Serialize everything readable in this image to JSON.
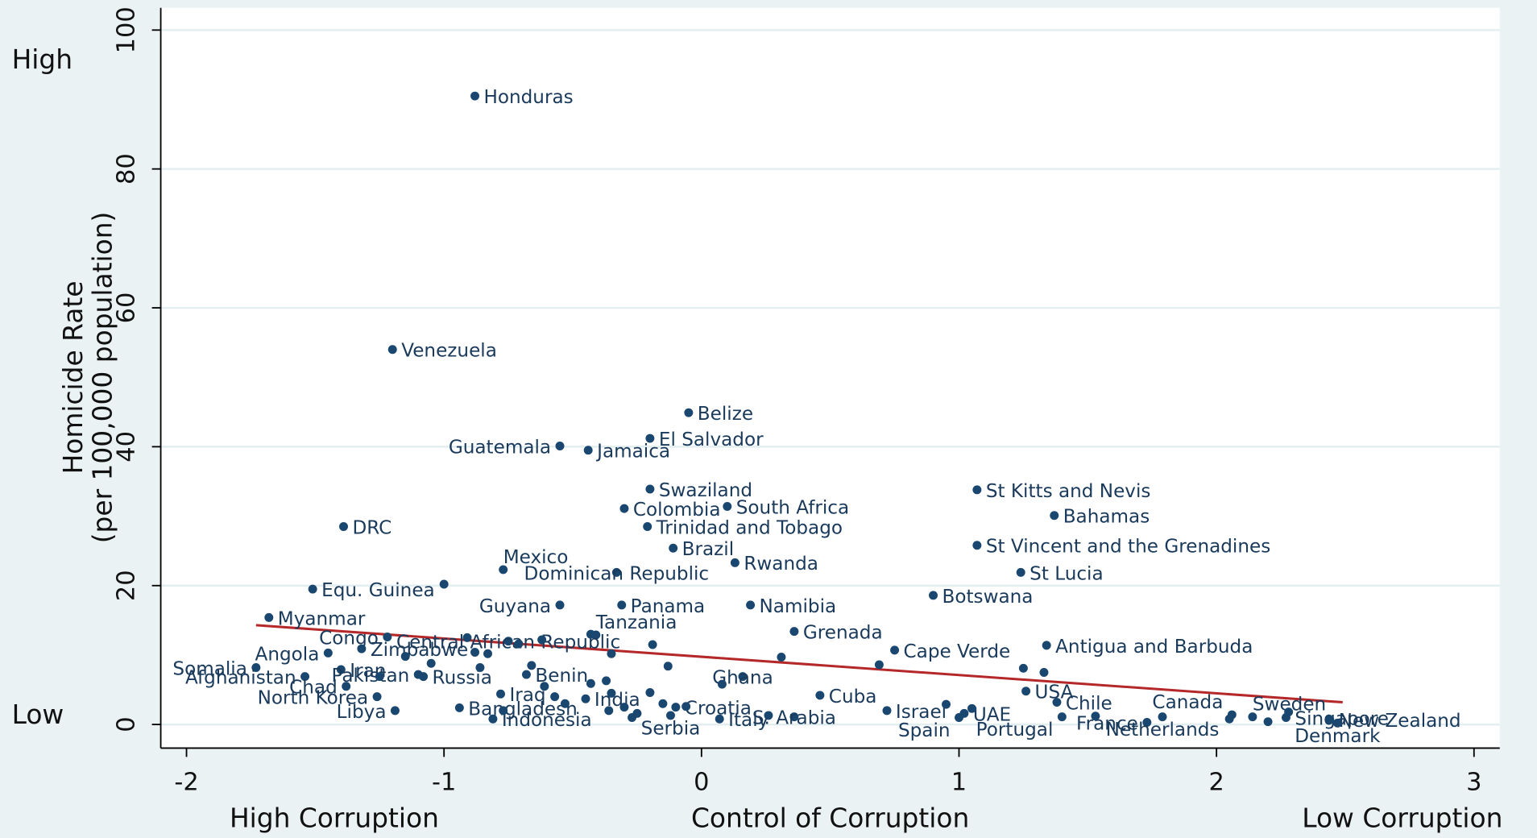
{
  "chart_data": {
    "type": "scatter",
    "y_label": [
      "Homicide Rate",
      "(per 100,000 population)"
    ],
    "x_label": "Control of Corruption",
    "annotations": {
      "y_high": "High",
      "y_low": "Low",
      "x_high": "High Corruption",
      "x_low": "Low Corruption"
    },
    "xlim": [
      -2.1,
      3.1
    ],
    "ylim": [
      -3.4,
      103.2
    ],
    "xticks": [
      -2,
      -1,
      0,
      1,
      2,
      3
    ],
    "yticks": [
      0,
      20,
      40,
      60,
      80,
      100
    ],
    "grid": true,
    "color": "#1a476f",
    "labels": [
      "Honduras",
      "Venezuela",
      "Belize",
      "El Salvador",
      "Guatemala",
      "Jamaica",
      "Swaziland",
      "Colombia",
      "South Africa",
      "Trinidad and Tobago",
      "DRC",
      "Brazil",
      "Rwanda",
      "Mexico",
      "Dominican Republic",
      "Equ. Guinea",
      "Guyana",
      "Panama",
      "Namibia",
      "Tanzania",
      "Myanmar",
      "Grenada",
      "Congo",
      "Central African Republic",
      "Somalia",
      "Angola",
      "Zimbabwe",
      "Cape Verde",
      "Antigua and Barbuda",
      "Afghanistan",
      "Chad",
      "Iran",
      "Pakistan",
      "Russia",
      "North Korea",
      "Libya",
      "Bangladesh",
      "Indonesia",
      "Iraq",
      "India",
      "Benin",
      "Ghana",
      "Croatia",
      "Serbia",
      "Italy",
      "S. Arabia",
      "Cuba",
      "Israel",
      "Spain",
      "UAE",
      "Portugal",
      "USA",
      "Chile",
      "France",
      "Canada",
      "Netherlands",
      "Sweden",
      "Singapore",
      "New Zealand",
      "Denmark",
      "St Kitts and Nevis",
      "Bahamas",
      "St Vincent and the Grenadines",
      "St Lucia",
      "Botswana",
      null,
      null,
      null,
      null,
      null,
      null,
      null,
      null,
      null,
      null,
      null,
      null,
      null,
      null,
      null,
      null,
      null,
      null,
      null,
      null,
      null,
      null,
      null,
      null,
      null,
      null,
      null,
      null,
      null,
      null,
      null,
      null,
      null,
      null,
      null,
      null,
      null,
      null,
      null,
      null,
      null
    ],
    "x": [
      -0.88,
      -1.2,
      -0.05,
      -0.2,
      -0.55,
      -0.44,
      -0.2,
      -0.3,
      0.1,
      -0.21,
      -1.39,
      -0.11,
      0.13,
      -0.77,
      -0.33,
      -1.51,
      -0.55,
      -0.31,
      0.19,
      -0.41,
      -1.68,
      0.36,
      -1.22,
      -0.75,
      -1.73,
      -1.45,
      -1.32,
      0.75,
      1.34,
      -1.54,
      -1.38,
      -1.4,
      -1.1,
      -1.08,
      -1.26,
      -1.19,
      -0.94,
      -0.81,
      -0.78,
      -0.45,
      -0.68,
      0.16,
      -0.1,
      -0.12,
      0.07,
      0.36,
      0.46,
      0.72,
      1.0,
      1.02,
      1.4,
      1.26,
      1.38,
      1.73,
      2.06,
      1.79,
      2.14,
      2.27,
      2.44,
      2.47,
      1.07,
      1.37,
      1.07,
      1.24,
      0.9,
      -1.0,
      -0.91,
      -0.88,
      -0.71,
      -0.62,
      -0.43,
      -0.19,
      -0.13,
      -0.35,
      -1.05,
      -1.15,
      -0.86,
      -0.83,
      -0.66,
      -0.61,
      -0.57,
      -0.53,
      -0.37,
      -0.35,
      -0.36,
      -0.3,
      -0.25,
      -0.2,
      -0.15,
      -0.06,
      0.31,
      0.08,
      0.69,
      0.26,
      1.25,
      1.33,
      1.53,
      2.05,
      2.2,
      2.28,
      1.05,
      0.95,
      -1.25,
      -0.77,
      -0.43,
      -0.27
    ],
    "y": [
      90.5,
      54.0,
      44.9,
      41.2,
      40.1,
      39.5,
      33.9,
      31.1,
      31.4,
      28.5,
      28.5,
      25.4,
      23.3,
      22.3,
      21.9,
      19.5,
      17.2,
      17.2,
      17.2,
      12.9,
      15.4,
      13.4,
      12.6,
      12.0,
      8.2,
      10.3,
      10.9,
      10.7,
      11.4,
      6.9,
      5.5,
      7.9,
      7.2,
      6.9,
      4.0,
      2.0,
      2.4,
      0.8,
      4.4,
      3.7,
      7.2,
      6.9,
      2.5,
      1.3,
      0.8,
      1.1,
      4.2,
      2.0,
      1.0,
      1.6,
      1.1,
      4.8,
      3.2,
      0.3,
      1.4,
      1.1,
      1.1,
      1.0,
      0.7,
      0.2,
      33.8,
      30.1,
      25.8,
      21.9,
      18.6,
      20.2,
      12.5,
      10.4,
      11.6,
      12.2,
      13.0,
      11.5,
      8.4,
      10.2,
      8.8,
      9.8,
      8.2,
      10.2,
      8.5,
      5.5,
      4.0,
      3.0,
      6.3,
      4.5,
      2.0,
      2.5,
      1.6,
      4.6,
      3.0,
      2.6,
      9.7,
      5.8,
      8.6,
      1.3,
      8.1,
      7.5,
      1.2,
      0.8,
      0.4,
      1.8,
      2.3,
      2.9,
      6.9,
      2.0,
      5.9,
      1.0
    ],
    "fit_line": {
      "color": "#b5282a",
      "x": [
        -1.73,
        2.49
      ],
      "y": [
        14.3,
        3.2
      ]
    }
  }
}
